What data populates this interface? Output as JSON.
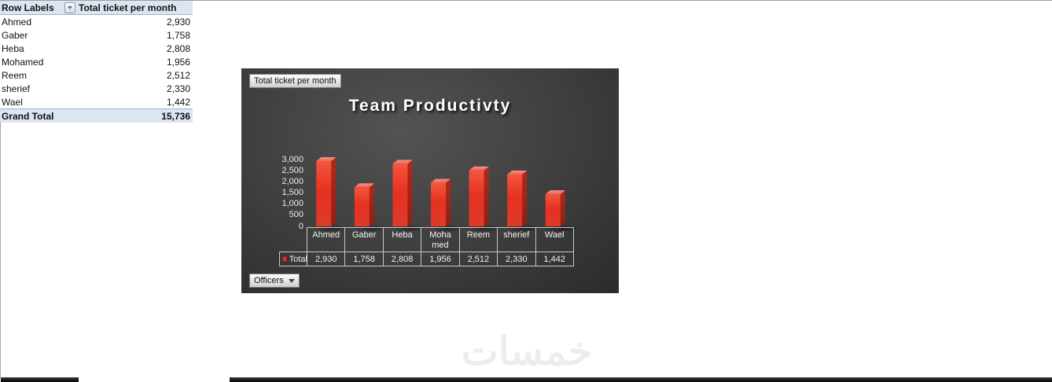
{
  "pivot_table": {
    "header": {
      "row_labels_label": "Row Labels",
      "value_header": "Total ticket per month"
    },
    "rows": [
      {
        "label": "Ahmed",
        "value": "2,930"
      },
      {
        "label": "Gaber",
        "value": "1,758"
      },
      {
        "label": "Heba",
        "value": "2,808"
      },
      {
        "label": "Mohamed",
        "value": "1,956"
      },
      {
        "label": "Reem",
        "value": "2,512"
      },
      {
        "label": "sherief",
        "value": "2,330"
      },
      {
        "label": "Wael",
        "value": "1,442"
      }
    ],
    "grand_total": {
      "label": "Grand Total",
      "value": "15,736"
    }
  },
  "chart": {
    "value_field_button_label": "Total ticket per month",
    "axis_field_button_label": "Officers",
    "title": "Team Productivty",
    "legend_label": "Total",
    "y_axis_ticks": [
      "3,000",
      "2,500",
      "2,000",
      "1,500",
      "1,000",
      "500",
      "0"
    ],
    "category_display": [
      "Ahmed",
      "Gaber",
      "Heba",
      "Moha med",
      "Reem",
      "sherief",
      "Wael"
    ],
    "value_display": [
      "2,930",
      "1,758",
      "2,808",
      "1,956",
      "2,512",
      "2,330",
      "1,442"
    ]
  },
  "chart_data": {
    "type": "bar",
    "title": "Team Productivty",
    "categories": [
      "Ahmed",
      "Gaber",
      "Heba",
      "Mohamed",
      "Reem",
      "sherief",
      "Wael"
    ],
    "series": [
      {
        "name": "Total",
        "values": [
          2930,
          1758,
          2808,
          1956,
          2512,
          2330,
          1442
        ]
      }
    ],
    "xlabel": "Officers",
    "ylabel": "",
    "ylim": [
      0,
      3000
    ],
    "y_tick_step": 500,
    "grid": false,
    "legend_position": "data-table-left",
    "style": "3d-column, dark gradient background",
    "bar_color": "#e63222"
  },
  "watermark_text": "خمسات",
  "colors": {
    "pivot_header_bg": "#dce6f1",
    "pivot_border": "#95b3d7",
    "chart_bg_center": "#535353",
    "chart_bg_edge": "#282828",
    "bar_red": "#e63222",
    "bar_top_face": "#f07a69",
    "bar_side_face": "#a2241a",
    "legend_marker": "#e63222",
    "table_line": "#c9c9c9",
    "bottom_bar": "#1c1c1c"
  }
}
